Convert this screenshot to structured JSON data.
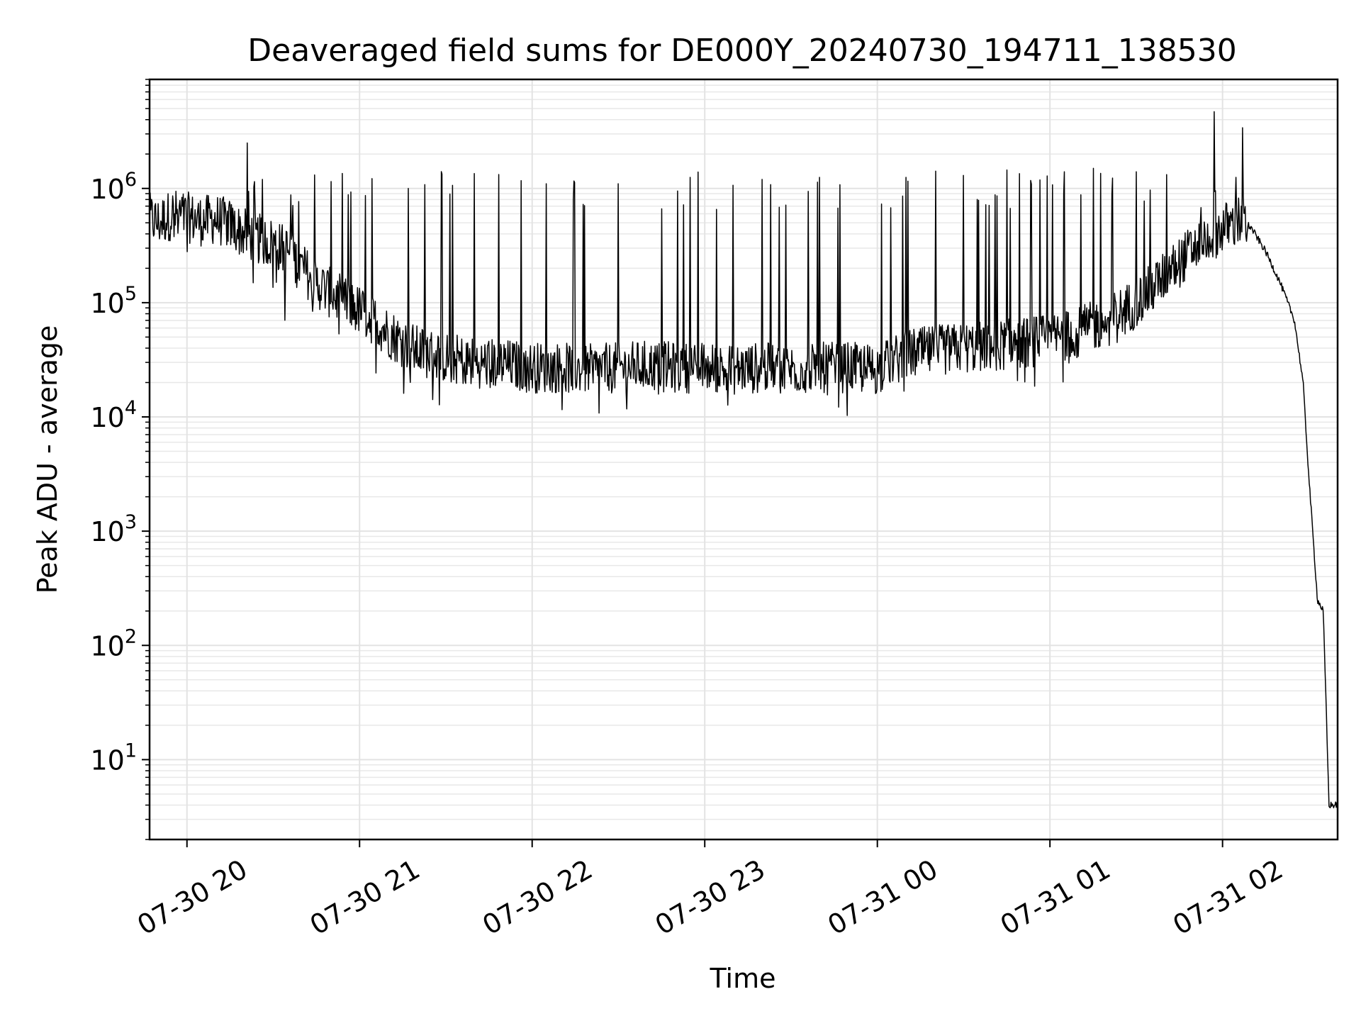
{
  "chart_data": {
    "type": "line",
    "title": "Deaveraged field sums for DE000Y_20240730_194711_138530",
    "xlabel": "Time",
    "ylabel": "Peak ADU - average",
    "yscale": "log",
    "ylim": [
      2,
      9000000
    ],
    "xlim": [
      "2024-07-30 19:47",
      "2024-07-31 02:40"
    ],
    "grid": true,
    "line_color": "#000000",
    "x_ticks": [
      {
        "value": "2024-07-30 20:00",
        "label": "07-30 20"
      },
      {
        "value": "2024-07-30 21:00",
        "label": "07-30 21"
      },
      {
        "value": "2024-07-30 22:00",
        "label": "07-30 22"
      },
      {
        "value": "2024-07-30 23:00",
        "label": "07-30 23"
      },
      {
        "value": "2024-07-31 00:00",
        "label": "07-31 00"
      },
      {
        "value": "2024-07-31 01:00",
        "label": "07-31 01"
      },
      {
        "value": "2024-07-31 02:00",
        "label": "07-31 02"
      }
    ],
    "y_ticks": [
      {
        "value": 10,
        "base": "10",
        "exp": "1"
      },
      {
        "value": 100,
        "base": "10",
        "exp": "2"
      },
      {
        "value": 1000,
        "base": "10",
        "exp": "3"
      },
      {
        "value": 10000,
        "base": "10",
        "exp": "4"
      },
      {
        "value": 100000,
        "base": "10",
        "exp": "5"
      },
      {
        "value": 1000000,
        "base": "10",
        "exp": "6"
      }
    ],
    "series": [
      {
        "points": [
          [
            "2024-07-30 19:47",
            550000
          ],
          [
            "2024-07-30 19:50",
            500000
          ],
          [
            "2024-07-30 19:55",
            600000
          ],
          [
            "2024-07-30 20:00",
            560000
          ],
          [
            "2024-07-30 20:05",
            520000
          ],
          [
            "2024-07-30 20:10",
            540000
          ],
          [
            "2024-07-30 20:15",
            480000
          ],
          [
            "2024-07-30 20:20",
            400000
          ],
          [
            "2024-07-30 20:25",
            360000
          ],
          [
            "2024-07-30 20:30",
            330000
          ],
          [
            "2024-07-30 20:35",
            280000
          ],
          [
            "2024-07-30 20:40",
            200000
          ],
          [
            "2024-07-30 20:45",
            150000
          ],
          [
            "2024-07-30 20:50",
            120000
          ],
          [
            "2024-07-30 20:55",
            100000
          ],
          [
            "2024-07-30 21:00",
            85000
          ],
          [
            "2024-07-30 21:05",
            70000
          ],
          [
            "2024-07-30 21:10",
            55000
          ],
          [
            "2024-07-30 21:15",
            45000
          ],
          [
            "2024-07-30 21:20",
            38000
          ],
          [
            "2024-07-30 21:30",
            33000
          ],
          [
            "2024-07-30 21:40",
            30000
          ],
          [
            "2024-07-30 21:50",
            29000
          ],
          [
            "2024-07-30 22:00",
            27000
          ],
          [
            "2024-07-30 22:10",
            27000
          ],
          [
            "2024-07-30 22:20",
            26000
          ],
          [
            "2024-07-30 22:30",
            27000
          ],
          [
            "2024-07-30 22:40",
            28000
          ],
          [
            "2024-07-30 22:50",
            27000
          ],
          [
            "2024-07-30 23:00",
            27000
          ],
          [
            "2024-07-30 23:10",
            26000
          ],
          [
            "2024-07-30 23:20",
            27000
          ],
          [
            "2024-07-30 23:30",
            26000
          ],
          [
            "2024-07-30 23:40",
            27000
          ],
          [
            "2024-07-30 23:50",
            27000
          ],
          [
            "2024-07-31 00:00",
            26000
          ],
          [
            "2024-07-31 00:10",
            35000
          ],
          [
            "2024-07-31 00:20",
            38000
          ],
          [
            "2024-07-31 00:30",
            40000
          ],
          [
            "2024-07-31 00:40",
            42000
          ],
          [
            "2024-07-31 00:50",
            44000
          ],
          [
            "2024-07-31 01:00",
            48000
          ],
          [
            "2024-07-31 01:10",
            55000
          ],
          [
            "2024-07-31 01:20",
            70000
          ],
          [
            "2024-07-31 01:30",
            100000
          ],
          [
            "2024-07-31 01:40",
            170000
          ],
          [
            "2024-07-31 01:50",
            300000
          ],
          [
            "2024-07-31 02:00",
            450000
          ],
          [
            "2024-07-31 02:07",
            530000
          ],
          [
            "2024-07-31 02:10",
            450000
          ],
          [
            "2024-07-31 02:15",
            280000
          ],
          [
            "2024-07-31 02:20",
            150000
          ],
          [
            "2024-07-31 02:25",
            70000
          ],
          [
            "2024-07-31 02:28",
            20000
          ],
          [
            "2024-07-31 02:30",
            3000
          ],
          [
            "2024-07-31 02:33",
            250
          ],
          [
            "2024-07-31 02:35",
            200
          ],
          [
            "2024-07-31 02:36",
            30
          ],
          [
            "2024-07-31 02:37",
            4
          ],
          [
            "2024-07-31 02:40",
            4
          ]
        ],
        "spikes": [
          [
            "2024-07-30 20:21",
            2500000
          ],
          [
            "2024-07-30 20:34",
            70000
          ],
          [
            "2024-07-30 20:50",
            1150000
          ],
          [
            "2024-07-30 21:17",
            1000000
          ],
          [
            "2024-07-30 21:40",
            1350000
          ],
          [
            "2024-07-30 22:05",
            1100000
          ],
          [
            "2024-07-30 22:30",
            1100000
          ],
          [
            "2024-07-30 22:55",
            1250000
          ],
          [
            "2024-07-30 23:20",
            1200000
          ],
          [
            "2024-07-30 23:40",
            1250000
          ],
          [
            "2024-07-31 00:10",
            1250000
          ],
          [
            "2024-07-31 00:30",
            1300000
          ],
          [
            "2024-07-31 00:45",
            1450000
          ],
          [
            "2024-07-31 01:05",
            1400000
          ],
          [
            "2024-07-31 01:15",
            1500000
          ],
          [
            "2024-07-31 01:30",
            1400000
          ],
          [
            "2024-07-31 01:57",
            4700000
          ],
          [
            "2024-07-31 02:07",
            3400000
          ]
        ]
      }
    ]
  }
}
